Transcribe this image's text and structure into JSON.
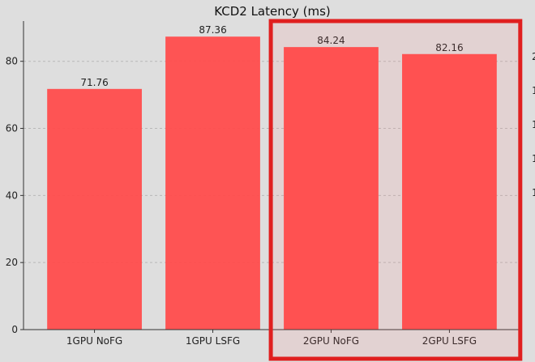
{
  "chart_data": {
    "type": "bar",
    "title": "KCD2 Latency (ms)",
    "xlabel": "",
    "ylabel": "",
    "categories": [
      "1GPU NoFG",
      "1GPU LSFG",
      "2GPU NoFG",
      "2GPU LSFG"
    ],
    "values": [
      71.76,
      87.36,
      84.24,
      82.16
    ],
    "value_labels": [
      "71.76",
      "87.36",
      "84.24",
      "82.16"
    ],
    "ylim": [
      0,
      92
    ],
    "yticks": [
      0,
      20,
      40,
      60,
      80
    ],
    "grid": true,
    "bar_color": "#ff4c4c",
    "highlight": {
      "categories": [
        "2GPU NoFG",
        "2GPU LSFG"
      ],
      "box_color": "#e01f1f"
    }
  }
}
